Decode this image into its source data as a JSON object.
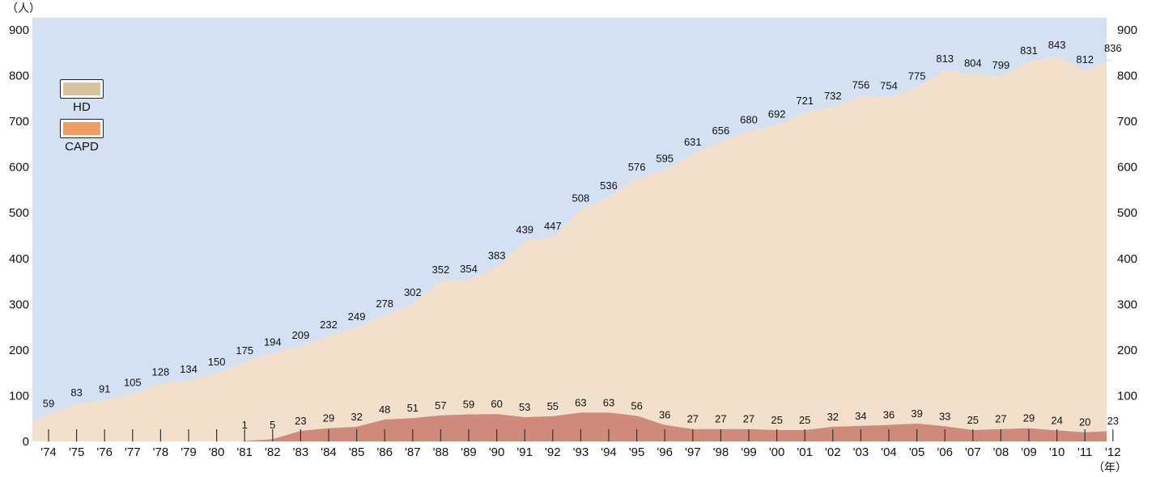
{
  "chart_data": {
    "type": "area",
    "unit_y": "（人）",
    "unit_x": "（年）",
    "ylim": [
      0,
      900
    ],
    "yticks": [
      "0",
      "100",
      "200",
      "300",
      "400",
      "500",
      "600",
      "700",
      "800",
      "900"
    ],
    "yticks_right": [
      "100",
      "200",
      "300",
      "400",
      "500",
      "600",
      "700",
      "800",
      "900"
    ],
    "categories": [
      "'74",
      "'75",
      "'76",
      "'77",
      "'78",
      "'79",
      "'80",
      "'81",
      "'82",
      "'83",
      "'84",
      "'85",
      "'86",
      "'87",
      "'88",
      "'89",
      "'90",
      "'91",
      "'92",
      "'93",
      "'94",
      "'95",
      "'96",
      "'97",
      "'98",
      "'99",
      "'00",
      "'01",
      "'02",
      "'03",
      "'04",
      "'05",
      "'06",
      "'07",
      "'08",
      "'09",
      "'10",
      "'11",
      "'12"
    ],
    "series": [
      {
        "name": "HD",
        "color": "#f2dfcc",
        "values": [
          59,
          83,
          91,
          105,
          128,
          134,
          150,
          175,
          194,
          209,
          232,
          249,
          278,
          302,
          352,
          354,
          383,
          439,
          447,
          508,
          536,
          576,
          595,
          631,
          656,
          680,
          692,
          721,
          732,
          756,
          754,
          775,
          813,
          804,
          799,
          831,
          843,
          812,
          836
        ]
      },
      {
        "name": "CAPD",
        "color": "#d08a7c",
        "values": [
          null,
          null,
          null,
          null,
          null,
          null,
          null,
          1,
          5,
          23,
          29,
          32,
          48,
          51,
          57,
          59,
          60,
          53,
          55,
          63,
          63,
          56,
          36,
          27,
          27,
          27,
          25,
          25,
          32,
          34,
          36,
          39,
          33,
          25,
          27,
          29,
          24,
          20,
          23
        ]
      }
    ],
    "grid": false,
    "background_color": "#d3e1f3",
    "legend": {
      "position": "top-left",
      "items": [
        {
          "label": "HD",
          "color": "#d6c49f"
        },
        {
          "label": "CAPD",
          "color": "#ef9d63"
        }
      ]
    }
  }
}
